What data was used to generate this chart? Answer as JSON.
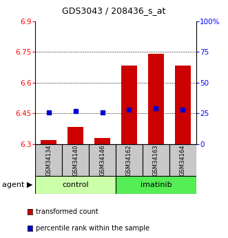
{
  "title": "GDS3043 / 208436_s_at",
  "samples": [
    "GSM34134",
    "GSM34140",
    "GSM34146",
    "GSM34162",
    "GSM34163",
    "GSM34164"
  ],
  "groups": [
    "control",
    "control",
    "control",
    "imatinib",
    "imatinib",
    "imatinib"
  ],
  "transformed_count": [
    6.32,
    6.385,
    6.33,
    6.685,
    6.74,
    6.685
  ],
  "percentile_rank": [
    26,
    27,
    26,
    28,
    29,
    28
  ],
  "ylim_left": [
    6.3,
    6.9
  ],
  "ylim_right": [
    0,
    100
  ],
  "yticks_left": [
    6.3,
    6.45,
    6.6,
    6.75,
    6.9
  ],
  "ytick_labels_left": [
    "6.3",
    "6.45",
    "6.6",
    "6.75",
    "6.9"
  ],
  "yticks_right": [
    0,
    25,
    50,
    75,
    100
  ],
  "ytick_labels_right": [
    "0",
    "25",
    "50",
    "75",
    "100%"
  ],
  "bar_color": "#cc0000",
  "dot_color": "#0000cc",
  "bar_width": 0.6,
  "group_colors": {
    "control": "#ccffaa",
    "imatinib": "#55ee55"
  },
  "group_spans": [
    [
      "control",
      0,
      2
    ],
    [
      "imatinib",
      3,
      5
    ]
  ],
  "legend_items": [
    {
      "label": "transformed count",
      "color": "#cc0000"
    },
    {
      "label": "percentile rank within the sample",
      "color": "#0000cc"
    }
  ],
  "dotted_yticks": [
    6.45,
    6.6,
    6.75
  ],
  "sample_box_color": "#c8c8c8",
  "title_fontsize": 9,
  "tick_fontsize": 7.5,
  "sample_fontsize": 6,
  "group_fontsize": 8,
  "legend_fontsize": 7,
  "agent_fontsize": 8
}
